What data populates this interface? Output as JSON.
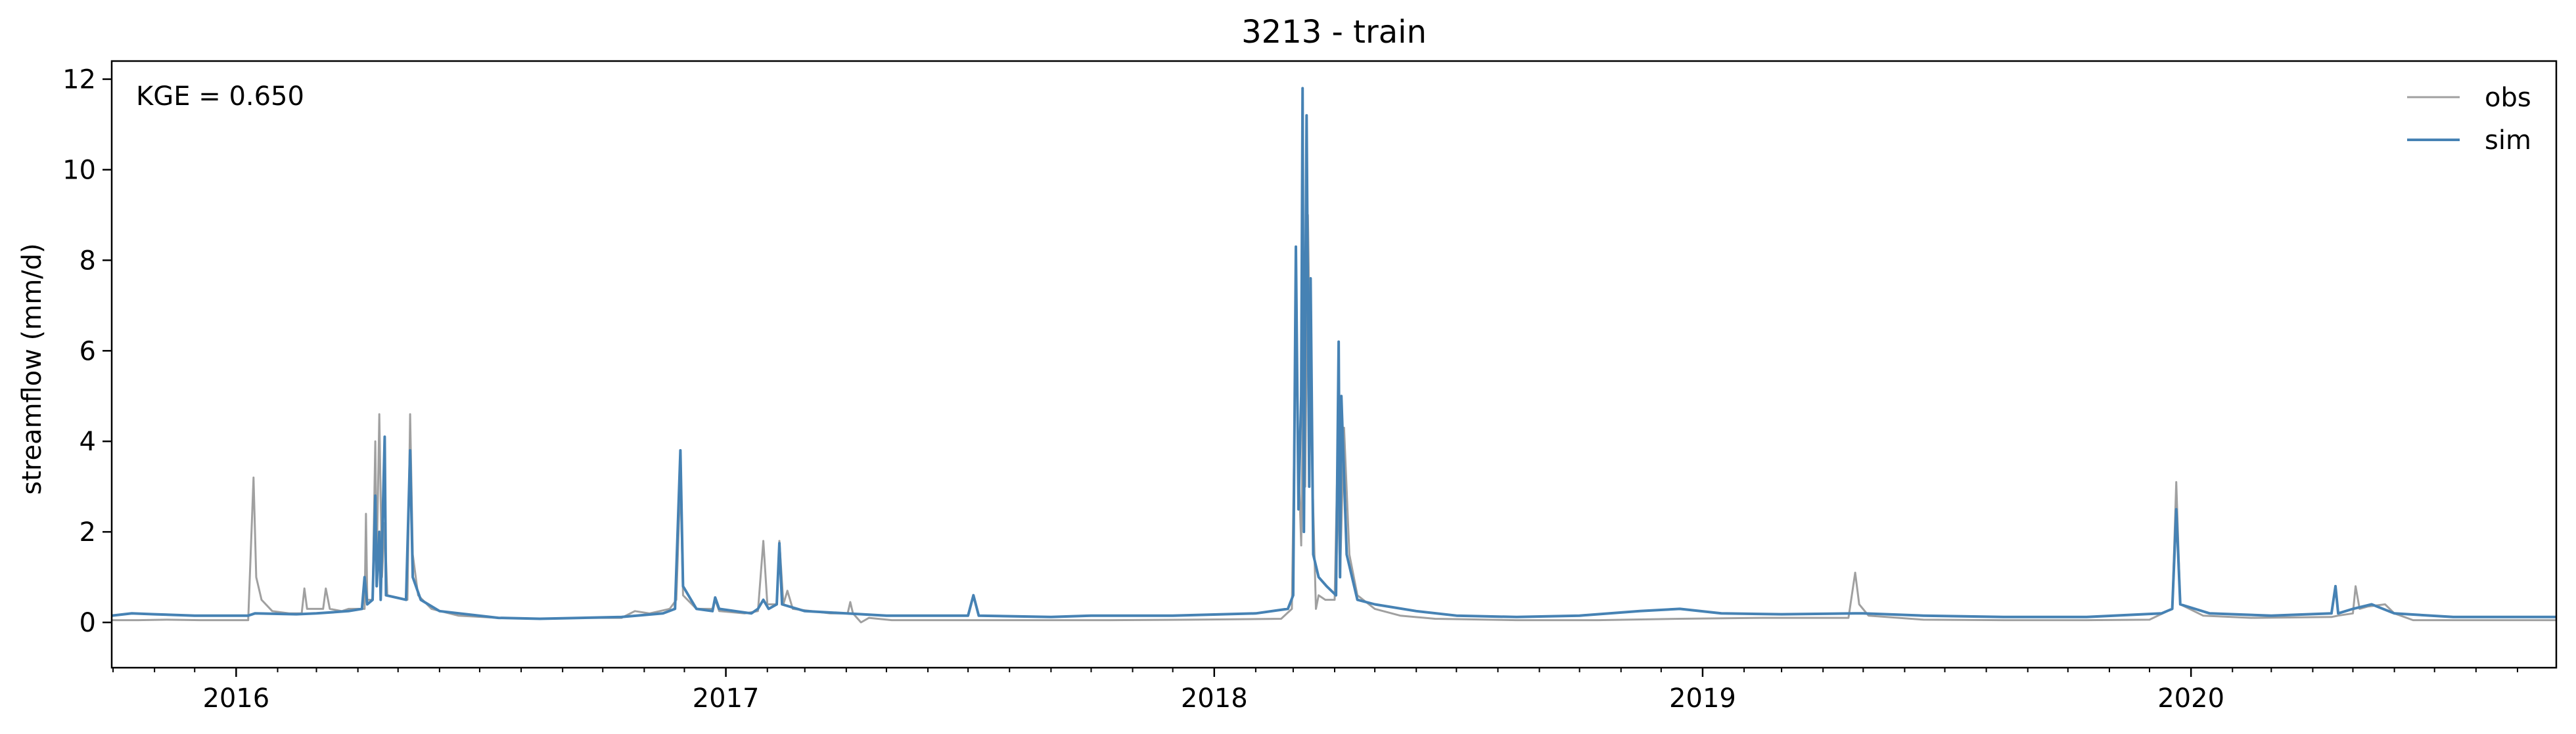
{
  "chart_data": {
    "type": "line",
    "title": "3213 - train",
    "xlabel": "",
    "ylabel": "streamflow (mm/d)",
    "annotation": "KGE = 0.650",
    "xlim": [
      "2015-09-30",
      "2020-09-30"
    ],
    "ylim": [
      -1,
      12.4
    ],
    "yticks": [
      "0",
      "2",
      "4",
      "6",
      "8",
      "10",
      "12"
    ],
    "xticks": [
      {
        "date": "2016-01-01",
        "label": "2016"
      },
      {
        "date": "2017-01-01",
        "label": "2017"
      },
      {
        "date": "2018-01-01",
        "label": "2018"
      },
      {
        "date": "2019-01-01",
        "label": "2019"
      },
      {
        "date": "2020-01-01",
        "label": "2020"
      }
    ],
    "minor_xticks": [
      "2015-10-01",
      "2015-11-01",
      "2015-12-01",
      "2016-02-01",
      "2016-03-01",
      "2016-04-01",
      "2016-05-01",
      "2016-06-01",
      "2016-07-01",
      "2016-08-01",
      "2016-09-01",
      "2016-10-01",
      "2016-11-01",
      "2016-12-01",
      "2017-02-01",
      "2017-03-01",
      "2017-04-01",
      "2017-05-01",
      "2017-06-01",
      "2017-07-01",
      "2017-08-01",
      "2017-09-01",
      "2017-10-01",
      "2017-11-01",
      "2017-12-01",
      "2018-02-01",
      "2018-03-01",
      "2018-04-01",
      "2018-05-01",
      "2018-06-01",
      "2018-07-01",
      "2018-08-01",
      "2018-09-01",
      "2018-10-01",
      "2018-11-01",
      "2018-12-01",
      "2019-02-01",
      "2019-03-01",
      "2019-04-01",
      "2019-05-01",
      "2019-06-01",
      "2019-07-01",
      "2019-08-01",
      "2019-09-01",
      "2019-10-01",
      "2019-11-01",
      "2019-12-01",
      "2020-02-01",
      "2020-03-01",
      "2020-04-01",
      "2020-05-01",
      "2020-06-01",
      "2020-07-01",
      "2020-08-01",
      "2020-09-01"
    ],
    "legend_position": "top-right",
    "grid": false,
    "series": [
      {
        "name": "obs",
        "color": "#a0a0a0",
        "points": [
          [
            "2015-09-30",
            0.05
          ],
          [
            "2015-10-20",
            0.05
          ],
          [
            "2015-11-10",
            0.06
          ],
          [
            "2015-12-05",
            0.05
          ],
          [
            "2016-01-10",
            0.05
          ],
          [
            "2016-01-14",
            3.2
          ],
          [
            "2016-01-16",
            1.0
          ],
          [
            "2016-01-20",
            0.5
          ],
          [
            "2016-01-28",
            0.25
          ],
          [
            "2016-02-10",
            0.2
          ],
          [
            "2016-02-19",
            0.2
          ],
          [
            "2016-02-21",
            0.75
          ],
          [
            "2016-02-23",
            0.3
          ],
          [
            "2016-03-06",
            0.3
          ],
          [
            "2016-03-08",
            0.75
          ],
          [
            "2016-03-11",
            0.3
          ],
          [
            "2016-03-20",
            0.25
          ],
          [
            "2016-03-25",
            0.3
          ],
          [
            "2016-04-06",
            0.3
          ],
          [
            "2016-04-07",
            2.4
          ],
          [
            "2016-04-08",
            0.5
          ],
          [
            "2016-04-12",
            0.5
          ],
          [
            "2016-04-14",
            4.0
          ],
          [
            "2016-04-15",
            1.2
          ],
          [
            "2016-04-17",
            4.6
          ],
          [
            "2016-04-19",
            1.0
          ],
          [
            "2016-04-21",
            2.2
          ],
          [
            "2016-04-23",
            0.6
          ],
          [
            "2016-05-08",
            0.5
          ],
          [
            "2016-05-10",
            4.6
          ],
          [
            "2016-05-12",
            1.5
          ],
          [
            "2016-05-16",
            0.6
          ],
          [
            "2016-05-26",
            0.3
          ],
          [
            "2016-06-15",
            0.15
          ],
          [
            "2016-07-15",
            0.1
          ],
          [
            "2016-08-15",
            0.08
          ],
          [
            "2016-09-15",
            0.1
          ],
          [
            "2016-10-15",
            0.1
          ],
          [
            "2016-10-25",
            0.25
          ],
          [
            "2016-11-05",
            0.2
          ],
          [
            "2016-11-20",
            0.3
          ],
          [
            "2016-11-25",
            0.5
          ],
          [
            "2016-11-28",
            3.2
          ],
          [
            "2016-11-30",
            0.6
          ],
          [
            "2016-12-10",
            0.3
          ],
          [
            "2016-12-22",
            0.3
          ],
          [
            "2016-12-24",
            0.5
          ],
          [
            "2016-12-27",
            0.25
          ],
          [
            "2017-01-15",
            0.2
          ],
          [
            "2017-01-25",
            0.25
          ],
          [
            "2017-01-29",
            1.8
          ],
          [
            "2017-02-01",
            0.4
          ],
          [
            "2017-02-08",
            0.4
          ],
          [
            "2017-02-10",
            1.8
          ],
          [
            "2017-02-13",
            0.4
          ],
          [
            "2017-02-16",
            0.7
          ],
          [
            "2017-02-20",
            0.3
          ],
          [
            "2017-03-20",
            0.2
          ],
          [
            "2017-04-02",
            0.2
          ],
          [
            "2017-04-04",
            0.45
          ],
          [
            "2017-04-06",
            0.2
          ],
          [
            "2017-04-12",
            0.0
          ],
          [
            "2017-04-18",
            0.1
          ],
          [
            "2017-05-05",
            0.05
          ],
          [
            "2017-06-15",
            0.05
          ],
          [
            "2017-07-15",
            0.05
          ],
          [
            "2017-08-15",
            0.05
          ],
          [
            "2017-10-15",
            0.05
          ],
          [
            "2017-12-15",
            0.06
          ],
          [
            "2018-02-20",
            0.08
          ],
          [
            "2018-02-28",
            0.3
          ],
          [
            "2018-03-03",
            6.5
          ],
          [
            "2018-03-05",
            3.5
          ],
          [
            "2018-03-07",
            1.7
          ],
          [
            "2018-03-08",
            4.0
          ],
          [
            "2018-03-09",
            8.0
          ],
          [
            "2018-03-10",
            3.0
          ],
          [
            "2018-03-12",
            9.0
          ],
          [
            "2018-03-14",
            5.0
          ],
          [
            "2018-03-16",
            2.5
          ],
          [
            "2018-03-18",
            0.3
          ],
          [
            "2018-03-20",
            0.6
          ],
          [
            "2018-03-25",
            0.5
          ],
          [
            "2018-04-01",
            0.5
          ],
          [
            "2018-04-03",
            3.5
          ],
          [
            "2018-04-05",
            1.0
          ],
          [
            "2018-04-08",
            4.3
          ],
          [
            "2018-04-12",
            1.5
          ],
          [
            "2018-04-18",
            0.6
          ],
          [
            "2018-05-01",
            0.3
          ],
          [
            "2018-05-20",
            0.15
          ],
          [
            "2018-06-15",
            0.08
          ],
          [
            "2018-08-15",
            0.05
          ],
          [
            "2018-10-15",
            0.05
          ],
          [
            "2018-12-15",
            0.08
          ],
          [
            "2019-02-15",
            0.1
          ],
          [
            "2019-04-20",
            0.1
          ],
          [
            "2019-04-25",
            1.1
          ],
          [
            "2019-04-28",
            0.4
          ],
          [
            "2019-05-05",
            0.15
          ],
          [
            "2019-06-15",
            0.06
          ],
          [
            "2019-08-15",
            0.05
          ],
          [
            "2019-10-15",
            0.05
          ],
          [
            "2019-12-01",
            0.06
          ],
          [
            "2019-12-18",
            0.3
          ],
          [
            "2019-12-21",
            3.1
          ],
          [
            "2019-12-24",
            0.4
          ],
          [
            "2020-01-10",
            0.15
          ],
          [
            "2020-02-15",
            0.1
          ],
          [
            "2020-04-15",
            0.12
          ],
          [
            "2020-04-20",
            0.15
          ],
          [
            "2020-05-01",
            0.2
          ],
          [
            "2020-05-03",
            0.8
          ],
          [
            "2020-05-06",
            0.3
          ],
          [
            "2020-05-12",
            0.35
          ],
          [
            "2020-05-25",
            0.4
          ],
          [
            "2020-06-01",
            0.2
          ],
          [
            "2020-06-15",
            0.05
          ],
          [
            "2020-07-15",
            0.05
          ],
          [
            "2020-09-30",
            0.05
          ]
        ]
      },
      {
        "name": "sim",
        "color": "#4682b4",
        "points": [
          [
            "2015-09-30",
            0.15
          ],
          [
            "2015-10-15",
            0.2
          ],
          [
            "2015-11-01",
            0.18
          ],
          [
            "2015-12-01",
            0.15
          ],
          [
            "2016-01-10",
            0.15
          ],
          [
            "2016-01-15",
            0.2
          ],
          [
            "2016-02-15",
            0.18
          ],
          [
            "2016-03-01",
            0.2
          ],
          [
            "2016-03-25",
            0.25
          ],
          [
            "2016-04-04",
            0.3
          ],
          [
            "2016-04-06",
            1.0
          ],
          [
            "2016-04-08",
            0.4
          ],
          [
            "2016-04-12",
            0.5
          ],
          [
            "2016-04-14",
            2.8
          ],
          [
            "2016-04-15",
            0.8
          ],
          [
            "2016-04-17",
            2.0
          ],
          [
            "2016-04-18",
            0.5
          ],
          [
            "2016-04-21",
            4.1
          ],
          [
            "2016-04-22",
            0.6
          ],
          [
            "2016-05-07",
            0.5
          ],
          [
            "2016-05-10",
            3.8
          ],
          [
            "2016-05-12",
            1.0
          ],
          [
            "2016-05-18",
            0.5
          ],
          [
            "2016-06-01",
            0.25
          ],
          [
            "2016-07-15",
            0.1
          ],
          [
            "2016-08-15",
            0.08
          ],
          [
            "2016-09-15",
            0.1
          ],
          [
            "2016-10-15",
            0.12
          ],
          [
            "2016-11-15",
            0.2
          ],
          [
            "2016-11-24",
            0.3
          ],
          [
            "2016-11-28",
            3.8
          ],
          [
            "2016-11-30",
            0.8
          ],
          [
            "2016-12-10",
            0.3
          ],
          [
            "2016-12-22",
            0.25
          ],
          [
            "2016-12-24",
            0.55
          ],
          [
            "2016-12-27",
            0.3
          ],
          [
            "2017-01-20",
            0.2
          ],
          [
            "2017-01-25",
            0.3
          ],
          [
            "2017-01-29",
            0.5
          ],
          [
            "2017-02-02",
            0.3
          ],
          [
            "2017-02-08",
            0.4
          ],
          [
            "2017-02-10",
            1.75
          ],
          [
            "2017-02-12",
            0.4
          ],
          [
            "2017-03-01",
            0.25
          ],
          [
            "2017-04-01",
            0.2
          ],
          [
            "2017-05-01",
            0.15
          ],
          [
            "2017-06-15",
            0.15
          ],
          [
            "2017-07-01",
            0.15
          ],
          [
            "2017-07-05",
            0.6
          ],
          [
            "2017-07-09",
            0.15
          ],
          [
            "2017-09-01",
            0.12
          ],
          [
            "2017-10-01",
            0.15
          ],
          [
            "2017-12-01",
            0.15
          ],
          [
            "2018-02-01",
            0.2
          ],
          [
            "2018-02-25",
            0.3
          ],
          [
            "2018-03-01",
            0.6
          ],
          [
            "2018-03-03",
            8.3
          ],
          [
            "2018-03-05",
            2.5
          ],
          [
            "2018-03-07",
            5.0
          ],
          [
            "2018-03-08",
            11.8
          ],
          [
            "2018-03-09",
            2.0
          ],
          [
            "2018-03-11",
            11.2
          ],
          [
            "2018-03-13",
            3.0
          ],
          [
            "2018-03-14",
            7.6
          ],
          [
            "2018-03-16",
            1.5
          ],
          [
            "2018-03-20",
            1.0
          ],
          [
            "2018-03-26",
            0.8
          ],
          [
            "2018-04-02",
            0.6
          ],
          [
            "2018-04-04",
            6.2
          ],
          [
            "2018-04-05",
            1.0
          ],
          [
            "2018-04-06",
            5.0
          ],
          [
            "2018-04-10",
            1.5
          ],
          [
            "2018-04-18",
            0.5
          ],
          [
            "2018-05-01",
            0.4
          ],
          [
            "2018-06-01",
            0.25
          ],
          [
            "2018-07-01",
            0.15
          ],
          [
            "2018-08-15",
            0.12
          ],
          [
            "2018-10-01",
            0.15
          ],
          [
            "2018-11-15",
            0.25
          ],
          [
            "2018-12-15",
            0.3
          ],
          [
            "2019-01-15",
            0.2
          ],
          [
            "2019-03-01",
            0.18
          ],
          [
            "2019-04-25",
            0.2
          ],
          [
            "2019-05-01",
            0.2
          ],
          [
            "2019-06-15",
            0.15
          ],
          [
            "2019-08-15",
            0.12
          ],
          [
            "2019-10-15",
            0.12
          ],
          [
            "2019-12-10",
            0.2
          ],
          [
            "2019-12-18",
            0.3
          ],
          [
            "2019-12-21",
            2.5
          ],
          [
            "2019-12-24",
            0.4
          ],
          [
            "2020-01-15",
            0.2
          ],
          [
            "2020-03-01",
            0.15
          ],
          [
            "2020-04-15",
            0.2
          ],
          [
            "2020-04-18",
            0.8
          ],
          [
            "2020-04-20",
            0.2
          ],
          [
            "2020-05-01",
            0.3
          ],
          [
            "2020-05-15",
            0.4
          ],
          [
            "2020-06-01",
            0.2
          ],
          [
            "2020-07-15",
            0.12
          ],
          [
            "2020-09-30",
            0.12
          ]
        ]
      }
    ]
  }
}
